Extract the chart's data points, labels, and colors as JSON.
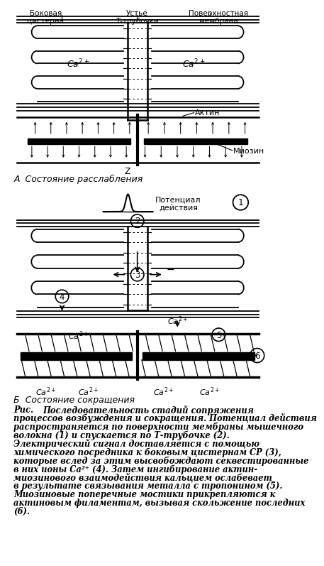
{
  "bg_color": "#ffffff",
  "line_color": "#000000",
  "label_top1": "Боковая\nцистерна",
  "label_top2": "Устье\nТ-трубочки",
  "label_top3": "Поверхностная\nмембрана",
  "label_actin": "Актин",
  "label_myosin": "Миозин",
  "label_A": "А  Состояние расслабления",
  "label_B": "Б  Состояние сокращения",
  "label_potential": "Потенциал\nдействия",
  "label_z": "Z",
  "caption_line1": "Рис.        Последовательность стадий сопряжения",
  "caption_rest": "процессов возбуждения и сокращения. Потенциал действия\nраспространяется по поверхности мембраны мышечного\nволокна (1) и спускается по Т-трубочке (2).\nЭлектрический сигнал доставляется с помощью\nхимического посредника к боковым цистернам СР (3),\nкоторые вслед за этим высвобождают секвестированные\nв них ионы Ca²⁺ (4). Затем ингибирование актин-\nмиозинового взаимодействия кальцием ослабевает\nв результате связывания металла с тропонином (5).\nМиозиновые поперечные мостики прикрепляются к\nактиновым филаментам, вызывая скольжение последних\n(6)."
}
